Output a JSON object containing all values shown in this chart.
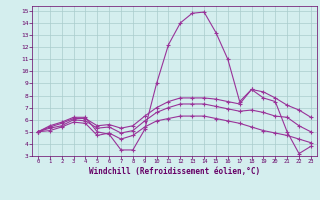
{
  "background_color": "#d4eeee",
  "grid_color": "#aacccc",
  "line_color": "#993399",
  "xlim": [
    -0.5,
    23.5
  ],
  "ylim": [
    3,
    15.4
  ],
  "yticks": [
    3,
    4,
    5,
    6,
    7,
    8,
    9,
    10,
    11,
    12,
    13,
    14,
    15
  ],
  "xticks": [
    0,
    1,
    2,
    3,
    4,
    5,
    6,
    7,
    8,
    9,
    10,
    11,
    12,
    13,
    14,
    15,
    16,
    17,
    18,
    19,
    20,
    21,
    22,
    23
  ],
  "xlabel": "Windchill (Refroidissement éolien,°C)",
  "s1": [
    5.0,
    5.5,
    5.8,
    6.2,
    6.2,
    5.0,
    4.8,
    3.5,
    3.5,
    5.2,
    9.0,
    12.2,
    14.0,
    14.8,
    14.9,
    13.2,
    11.0,
    7.5,
    8.5,
    7.8,
    7.5,
    5.0,
    3.2,
    3.8
  ],
  "s2": [
    5.0,
    5.4,
    5.7,
    6.1,
    6.1,
    5.5,
    5.6,
    5.3,
    5.5,
    6.3,
    7.0,
    7.5,
    7.8,
    7.8,
    7.8,
    7.7,
    7.5,
    7.3,
    8.5,
    8.3,
    7.8,
    7.2,
    6.8,
    6.2
  ],
  "s3": [
    5.0,
    5.3,
    5.5,
    6.0,
    5.9,
    5.3,
    5.4,
    4.9,
    5.1,
    5.9,
    6.6,
    7.0,
    7.3,
    7.3,
    7.3,
    7.1,
    6.9,
    6.7,
    6.8,
    6.6,
    6.3,
    6.2,
    5.5,
    5.0
  ],
  "s4": [
    5.0,
    5.1,
    5.4,
    5.8,
    5.7,
    4.7,
    4.9,
    4.4,
    4.7,
    5.4,
    5.9,
    6.1,
    6.3,
    6.3,
    6.3,
    6.1,
    5.9,
    5.7,
    5.4,
    5.1,
    4.9,
    4.7,
    4.4,
    4.1
  ]
}
